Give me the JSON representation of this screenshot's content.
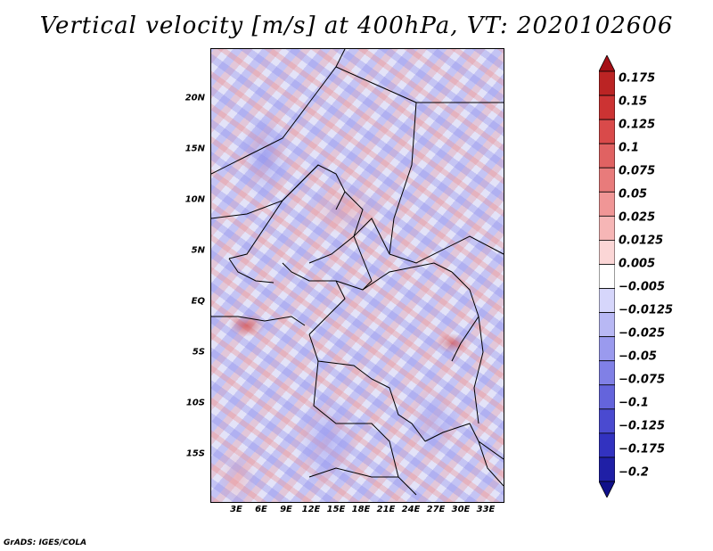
{
  "title": "Vertical velocity [m/s] at 400hPa, VT: 2020102606",
  "footer": "GrADS: IGES/COLA",
  "map": {
    "region": "Central Africa",
    "y_ticks": [
      {
        "label": "20N",
        "lat": 20
      },
      {
        "label": "15N",
        "lat": 15
      },
      {
        "label": "10N",
        "lat": 10
      },
      {
        "label": "5N",
        "lat": 5
      },
      {
        "label": "EQ",
        "lat": 0
      },
      {
        "label": "5S",
        "lat": -5
      },
      {
        "label": "10S",
        "lat": -10
      },
      {
        "label": "15S",
        "lat": -15
      }
    ],
    "x_ticks": [
      {
        "label": "3E",
        "lon": 3
      },
      {
        "label": "6E",
        "lon": 6
      },
      {
        "label": "9E",
        "lon": 9
      },
      {
        "label": "12E",
        "lon": 12
      },
      {
        "label": "15E",
        "lon": 15
      },
      {
        "label": "18E",
        "lon": 18
      },
      {
        "label": "21E",
        "lon": 21
      },
      {
        "label": "24E",
        "lon": 24
      },
      {
        "label": "27E",
        "lon": 27
      },
      {
        "label": "30E",
        "lon": 30
      },
      {
        "label": "33E",
        "lon": 33
      }
    ],
    "colors": {
      "positive": "#c02020",
      "negative": "#3030c0",
      "neutral": "#ffffff",
      "borders": "#000000"
    }
  },
  "colorbar": {
    "labels": [
      "0.175",
      "0.15",
      "0.125",
      "0.1",
      "0.075",
      "0.05",
      "0.025",
      "0.0125",
      "0.005",
      "−0.005",
      "−0.0125",
      "−0.025",
      "−0.05",
      "−0.075",
      "−0.1",
      "−0.125",
      "−0.175",
      "−0.2"
    ],
    "colors": [
      "#a50f15",
      "#bb2424",
      "#cc3333",
      "#d94a4a",
      "#e06262",
      "#e87b7b",
      "#f09696",
      "#f6b6b6",
      "#fbd6d6",
      "#ffffff",
      "#d6d6fb",
      "#b8b8f4",
      "#9a9aee",
      "#8080e6",
      "#6464dc",
      "#4a4ad0",
      "#3232c0",
      "#1f1fa6",
      "#10108a"
    ]
  }
}
